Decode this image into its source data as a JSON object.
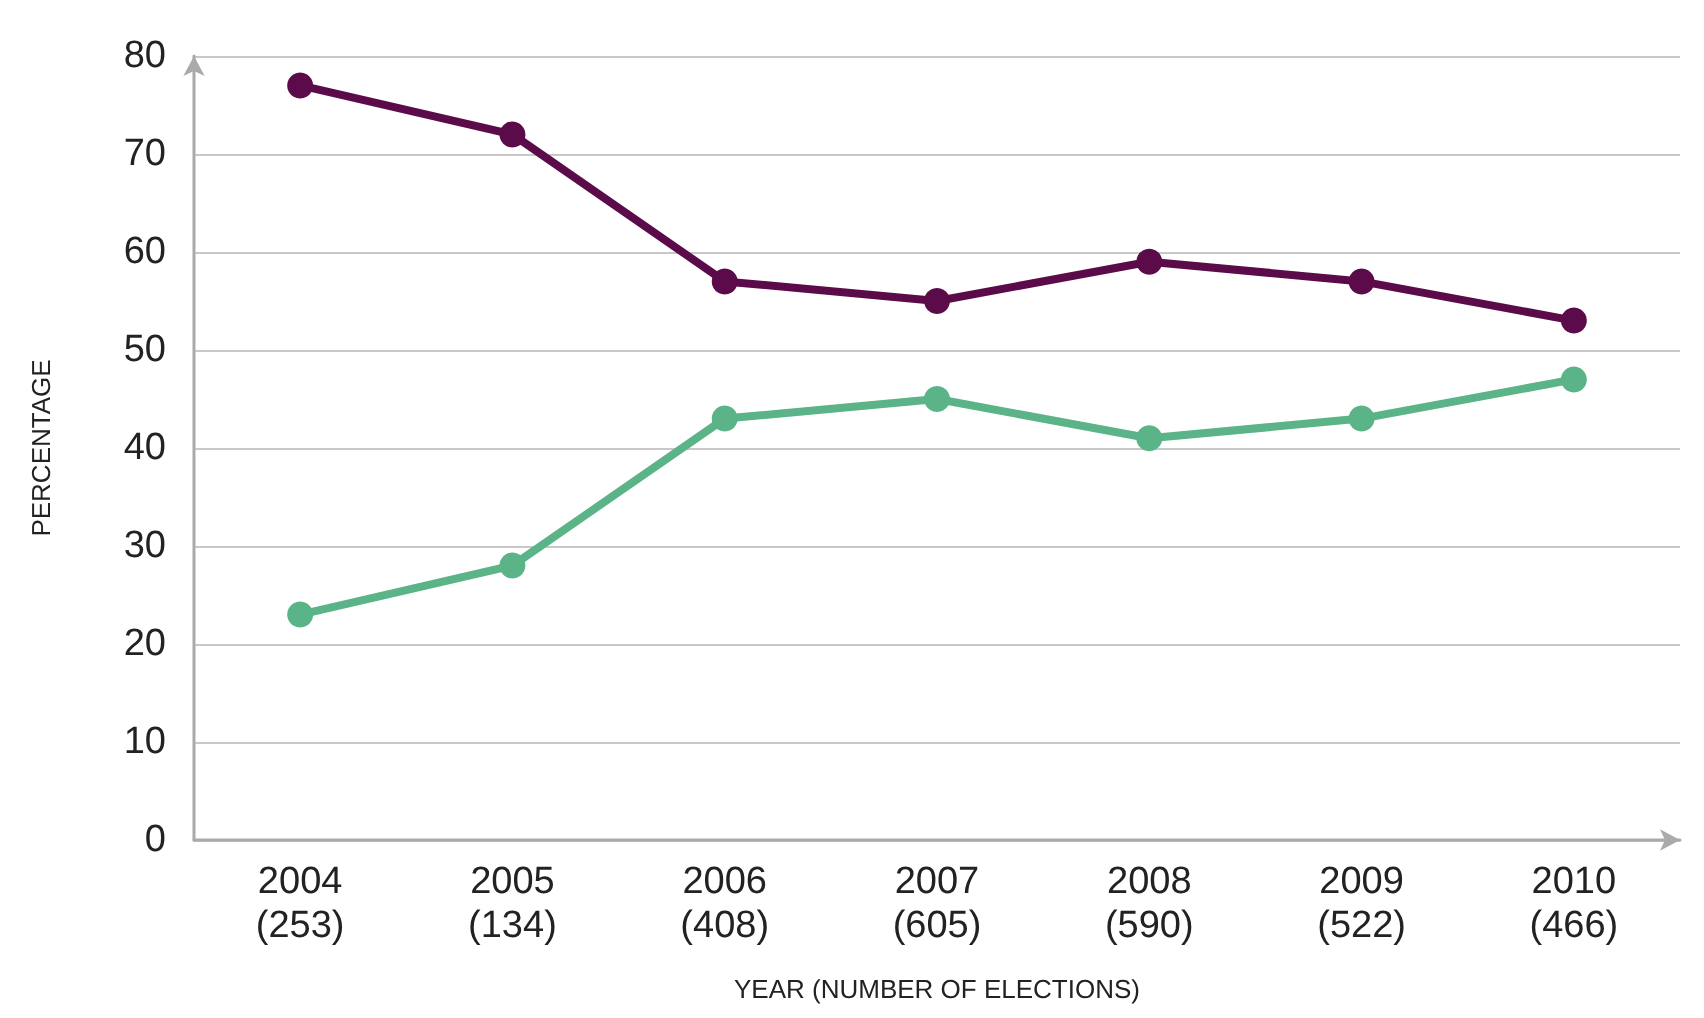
{
  "chart_data": {
    "type": "line",
    "xlabel": "YEAR (NUMBER OF ELECTIONS)",
    "ylabel": "PERCENTAGE",
    "categories": [
      "2004\n(253)",
      "2005\n(134)",
      "2006\n(408)",
      "2007\n(605)",
      "2008\n(590)",
      "2009\n(522)",
      "2010\n(466)"
    ],
    "series": [
      {
        "color": "#5c0b4a",
        "values": [
          77,
          72,
          57,
          55,
          59,
          57,
          53
        ]
      },
      {
        "color": "#5bb388",
        "values": [
          23,
          28,
          43,
          45,
          41,
          43,
          47
        ]
      }
    ],
    "ylim": [
      0,
      80
    ],
    "yticks": [
      0,
      10,
      20,
      30,
      40,
      50,
      60,
      70,
      80
    ],
    "grid": "y",
    "marker": "circle",
    "line_style": "solid"
  }
}
